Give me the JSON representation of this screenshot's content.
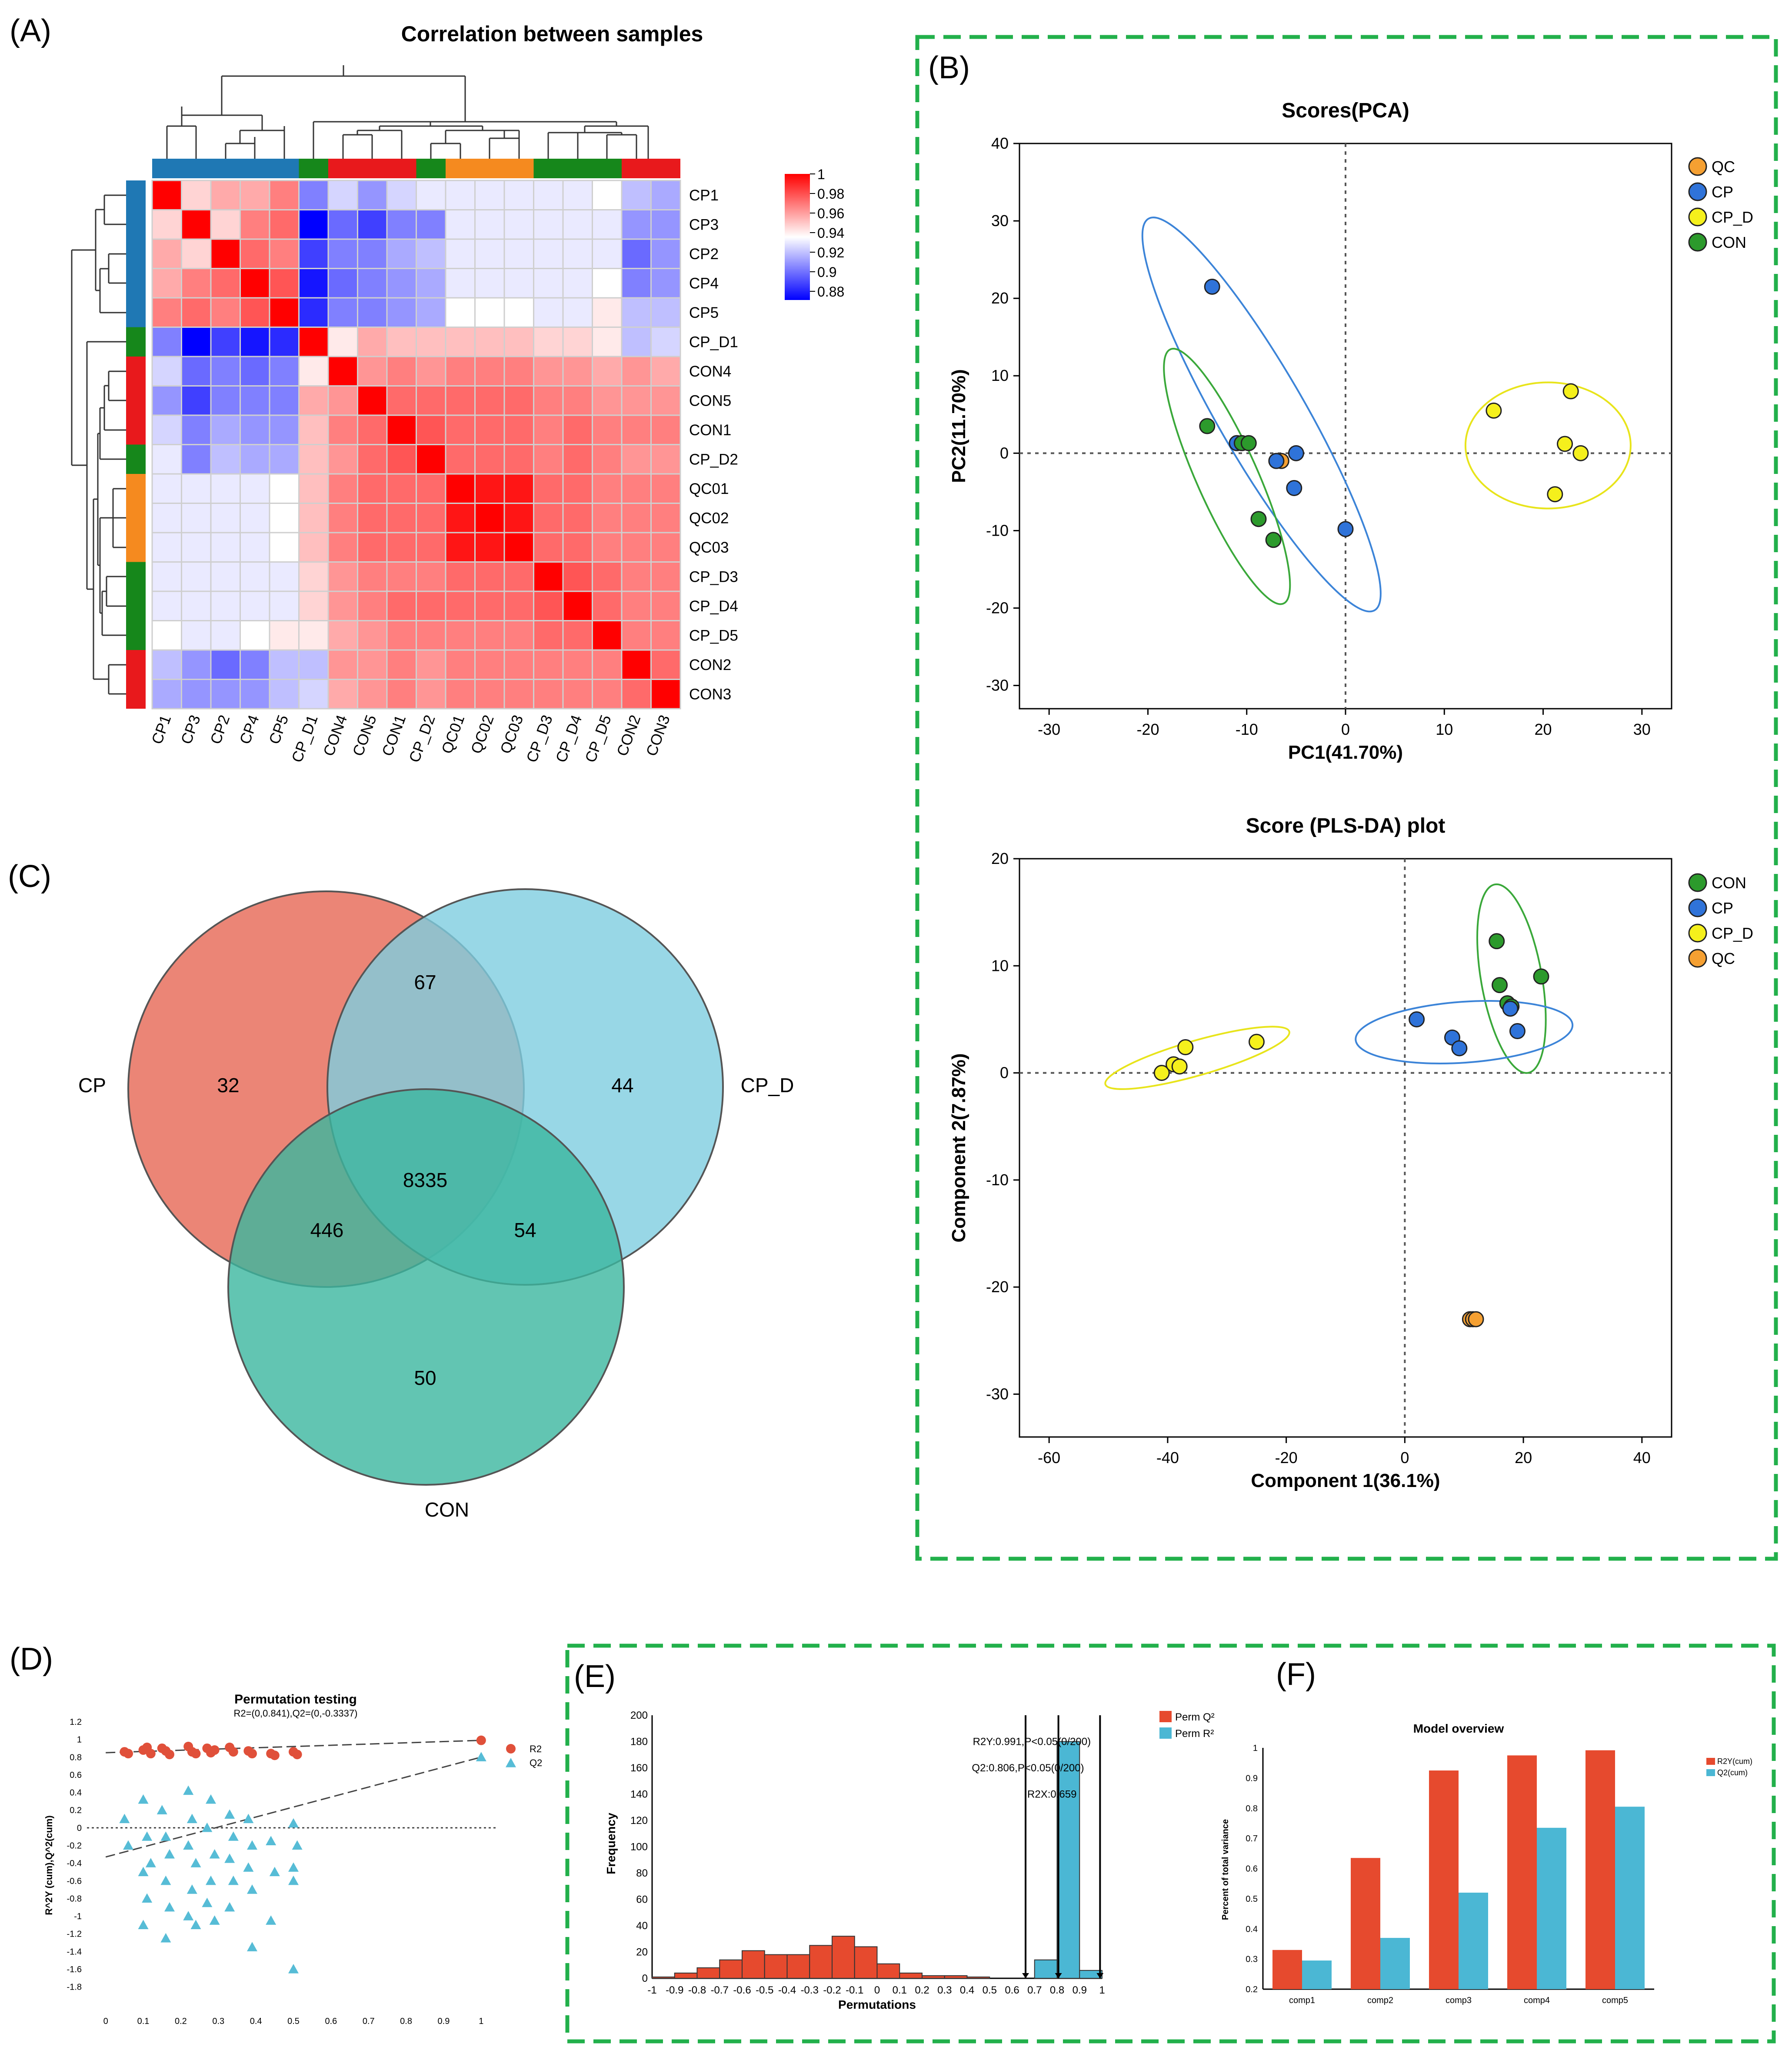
{
  "panel_letters": {
    "A": "(A)",
    "B": "(B)",
    "C": "(C)",
    "D": "(D)",
    "E": "(E)",
    "F": "(F)"
  },
  "colors": {
    "CP": "#1f78b4",
    "CON": "#e8191c",
    "CP_D": "#16871b",
    "QC": "#f58a1f",
    "pt_CP": "#2f73d9",
    "pt_CON": "#2c9a2c",
    "pt_CP_D": "#f5f01c",
    "pt_QC": "#f5a032",
    "venn_CP": "#e8705e",
    "venn_CP_D": "#7ecde0",
    "venn_CON": "#3bb79f",
    "bar_red": "#e64a2e",
    "bar_blue": "#4bb7d4",
    "frame": "#22b04b"
  },
  "chart_data": [
    {
      "type": "heatmap",
      "title": "Correlation between samples",
      "samples": [
        "CP1",
        "CP3",
        "CP2",
        "CP4",
        "CP5",
        "CP_D1",
        "CON4",
        "CON5",
        "CON1",
        "CP_D2",
        "QC01",
        "QC02",
        "QC03",
        "CP_D3",
        "CP_D4",
        "CP_D5",
        "CON2",
        "CON3"
      ],
      "groups": [
        "CP",
        "CP",
        "CP",
        "CP",
        "CP",
        "CP_D",
        "CON",
        "CON",
        "CON",
        "CP_D",
        "QC",
        "QC",
        "QC",
        "CP_D",
        "CP_D",
        "CP_D",
        "CON",
        "CON"
      ],
      "legend_ticks": [
        "1",
        "0.98",
        "0.96",
        "0.94",
        "0.92",
        "0.9",
        "0.88"
      ],
      "matrix": [
        [
          1,
          0.95,
          0.96,
          0.96,
          0.97,
          0.91,
          0.93,
          0.915,
          0.93,
          0.935,
          0.935,
          0.935,
          0.935,
          0.935,
          0.935,
          0.94,
          0.925,
          0.92
        ],
        [
          0.95,
          1,
          0.95,
          0.97,
          0.975,
          0.88,
          0.905,
          0.895,
          0.91,
          0.91,
          0.935,
          0.935,
          0.935,
          0.935,
          0.935,
          0.935,
          0.915,
          0.915
        ],
        [
          0.96,
          0.95,
          1,
          0.975,
          0.97,
          0.895,
          0.91,
          0.91,
          0.92,
          0.925,
          0.935,
          0.935,
          0.935,
          0.935,
          0.935,
          0.935,
          0.905,
          0.915
        ],
        [
          0.96,
          0.97,
          0.975,
          1,
          0.98,
          0.885,
          0.905,
          0.91,
          0.915,
          0.92,
          0.935,
          0.935,
          0.935,
          0.935,
          0.935,
          0.94,
          0.91,
          0.915
        ],
        [
          0.97,
          0.975,
          0.97,
          0.98,
          1,
          0.89,
          0.91,
          0.91,
          0.915,
          0.92,
          0.94,
          0.94,
          0.94,
          0.935,
          0.935,
          0.945,
          0.925,
          0.925
        ],
        [
          0.91,
          0.88,
          0.895,
          0.885,
          0.89,
          1,
          0.945,
          0.96,
          0.955,
          0.955,
          0.955,
          0.955,
          0.955,
          0.95,
          0.95,
          0.945,
          0.925,
          0.93
        ],
        [
          0.93,
          0.905,
          0.91,
          0.905,
          0.91,
          0.945,
          1,
          0.965,
          0.97,
          0.965,
          0.97,
          0.97,
          0.97,
          0.965,
          0.965,
          0.96,
          0.965,
          0.96
        ],
        [
          0.915,
          0.895,
          0.91,
          0.91,
          0.91,
          0.96,
          0.965,
          1,
          0.975,
          0.975,
          0.975,
          0.975,
          0.975,
          0.97,
          0.97,
          0.965,
          0.965,
          0.965
        ],
        [
          0.93,
          0.91,
          0.92,
          0.915,
          0.915,
          0.955,
          0.97,
          0.975,
          1,
          0.98,
          0.975,
          0.975,
          0.975,
          0.97,
          0.975,
          0.97,
          0.97,
          0.97
        ],
        [
          0.935,
          0.91,
          0.925,
          0.92,
          0.92,
          0.955,
          0.965,
          0.975,
          0.98,
          1,
          0.975,
          0.975,
          0.975,
          0.97,
          0.975,
          0.97,
          0.965,
          0.965
        ],
        [
          0.935,
          0.935,
          0.935,
          0.935,
          0.94,
          0.955,
          0.97,
          0.975,
          0.975,
          0.975,
          1,
          0.995,
          0.995,
          0.975,
          0.975,
          0.97,
          0.97,
          0.97
        ],
        [
          0.935,
          0.935,
          0.935,
          0.935,
          0.94,
          0.955,
          0.97,
          0.975,
          0.975,
          0.975,
          0.995,
          1,
          0.995,
          0.975,
          0.975,
          0.97,
          0.97,
          0.97
        ],
        [
          0.935,
          0.935,
          0.935,
          0.935,
          0.94,
          0.955,
          0.97,
          0.975,
          0.975,
          0.975,
          0.995,
          0.995,
          1,
          0.975,
          0.975,
          0.97,
          0.97,
          0.97
        ],
        [
          0.935,
          0.935,
          0.935,
          0.935,
          0.935,
          0.95,
          0.965,
          0.97,
          0.97,
          0.97,
          0.975,
          0.975,
          0.975,
          1,
          0.98,
          0.975,
          0.97,
          0.97
        ],
        [
          0.935,
          0.935,
          0.935,
          0.935,
          0.935,
          0.95,
          0.965,
          0.97,
          0.975,
          0.975,
          0.975,
          0.975,
          0.975,
          0.98,
          1,
          0.975,
          0.97,
          0.97
        ],
        [
          0.94,
          0.935,
          0.935,
          0.94,
          0.945,
          0.945,
          0.96,
          0.965,
          0.97,
          0.97,
          0.97,
          0.97,
          0.97,
          0.975,
          0.975,
          1,
          0.97,
          0.97
        ],
        [
          0.925,
          0.915,
          0.905,
          0.91,
          0.925,
          0.925,
          0.965,
          0.965,
          0.97,
          0.965,
          0.97,
          0.97,
          0.97,
          0.97,
          0.97,
          0.97,
          1,
          0.975
        ],
        [
          0.92,
          0.915,
          0.915,
          0.915,
          0.925,
          0.93,
          0.96,
          0.965,
          0.97,
          0.965,
          0.97,
          0.97,
          0.97,
          0.97,
          0.97,
          0.97,
          0.975,
          1
        ]
      ]
    },
    {
      "type": "scatter",
      "title": "Scores(PCA)",
      "xlabel": "PC1(41.70%)",
      "ylabel": "PC2(11.70%)",
      "xlim": [
        -33,
        33
      ],
      "ylim": [
        -33,
        40
      ],
      "xticks": [
        "-30",
        "-20",
        "-10",
        "0",
        "10",
        "20",
        "30"
      ],
      "yticks": [
        "40",
        "30",
        "20",
        "10",
        "0",
        "-10",
        "-20",
        "-30"
      ],
      "legend": [
        "QC",
        "CP",
        "CP_D",
        "CON"
      ],
      "series": [
        {
          "name": "QC",
          "points": [
            [
              -7,
              -1
            ],
            [
              -6.5,
              -1
            ]
          ]
        },
        {
          "name": "CP",
          "points": [
            [
              -13.5,
              21.5
            ],
            [
              -11,
              1.3
            ],
            [
              -5,
              0
            ],
            [
              -5.2,
              -4.5
            ],
            [
              0,
              -9.8
            ],
            [
              -7,
              -1
            ]
          ]
        },
        {
          "name": "CP_D",
          "points": [
            [
              15,
              5.5
            ],
            [
              22.8,
              8
            ],
            [
              22.2,
              1.2
            ],
            [
              23.8,
              0
            ],
            [
              21.2,
              -5.3
            ]
          ]
        },
        {
          "name": "CON",
          "points": [
            [
              -14,
              3.5
            ],
            [
              -10.5,
              1.3
            ],
            [
              -9.8,
              1.3
            ],
            [
              -8.8,
              -8.5
            ],
            [
              -7.3,
              -11.2
            ]
          ]
        }
      ]
    },
    {
      "type": "scatter",
      "title": "Score (PLS-DA) plot",
      "xlabel": "Component 1(36.1%)",
      "ylabel": "Component 2(7.87%)",
      "xlim": [
        -65,
        45
      ],
      "ylim": [
        -34,
        20
      ],
      "xticks": [
        "-60",
        "-40",
        "-20",
        "0",
        "20",
        "40"
      ],
      "yticks": [
        "20",
        "10",
        "0",
        "-10",
        "-20",
        "-30"
      ],
      "legend": [
        "CON",
        "CP",
        "CP_D",
        "QC"
      ],
      "series": [
        {
          "name": "CON",
          "points": [
            [
              15.5,
              12.3
            ],
            [
              16,
              8.2
            ],
            [
              23,
              9
            ],
            [
              17.3,
              6.5
            ],
            [
              18,
              6.2
            ]
          ]
        },
        {
          "name": "CP",
          "points": [
            [
              2,
              5
            ],
            [
              8,
              3.3
            ],
            [
              9.2,
              2.3
            ],
            [
              17.8,
              6
            ],
            [
              19,
              3.9
            ]
          ]
        },
        {
          "name": "CP_D",
          "points": [
            [
              -41,
              0
            ],
            [
              -39,
              0.8
            ],
            [
              -38,
              0.6
            ],
            [
              -37,
              2.4
            ],
            [
              -25,
              2.9
            ]
          ]
        },
        {
          "name": "QC",
          "points": [
            [
              11,
              -23
            ],
            [
              11.5,
              -23
            ],
            [
              12,
              -23
            ]
          ]
        }
      ]
    },
    {
      "type": "venn",
      "sets": [
        "CP",
        "CP_D",
        "CON"
      ],
      "regions": {
        "CP_only": "32",
        "CP_D_only": "44",
        "CON_only": "50",
        "CP_CP_D": "67",
        "CP_CON": "446",
        "CP_D_CON": "54",
        "all": "8335"
      }
    },
    {
      "type": "scatter",
      "title": "Permutation testing",
      "subtitle": "R2=(0,0.841),Q2=(0,-0.3337)",
      "ylabel": "R^2Y (cum),Q^2(cum)",
      "xlim": [
        -0.05,
        1.05
      ],
      "ylim": [
        -1.9,
        1.2
      ],
      "xticks": [
        "0",
        "0.1",
        "0.2",
        "0.3",
        "0.4",
        "0.5",
        "0.6",
        "0.7",
        "0.8",
        "0.9",
        "1"
      ],
      "yticks": [
        "1.2",
        "1",
        "0.8",
        "0.6",
        "0.4",
        "0.2",
        "0",
        "-0.2",
        "-0.4",
        "-0.6",
        "-0.8",
        "-1",
        "-1.2",
        "-1.4",
        "-1.6",
        "-1.8"
      ],
      "legend": [
        "R2",
        "Q2"
      ],
      "r2_points": [
        [
          0.05,
          0.86
        ],
        [
          0.06,
          0.84
        ],
        [
          0.1,
          0.88
        ],
        [
          0.11,
          0.91
        ],
        [
          0.12,
          0.84
        ],
        [
          0.15,
          0.9
        ],
        [
          0.16,
          0.87
        ],
        [
          0.17,
          0.83
        ],
        [
          0.22,
          0.92
        ],
        [
          0.23,
          0.86
        ],
        [
          0.24,
          0.84
        ],
        [
          0.27,
          0.9
        ],
        [
          0.28,
          0.85
        ],
        [
          0.29,
          0.88
        ],
        [
          0.33,
          0.91
        ],
        [
          0.34,
          0.86
        ],
        [
          0.38,
          0.87
        ],
        [
          0.39,
          0.84
        ],
        [
          0.44,
          0.84
        ],
        [
          0.45,
          0.82
        ],
        [
          0.5,
          0.86
        ],
        [
          0.51,
          0.83
        ],
        [
          1,
          0.99
        ]
      ],
      "q2_points": [
        [
          0.05,
          0.1
        ],
        [
          0.06,
          -0.2
        ],
        [
          0.1,
          0.32
        ],
        [
          0.11,
          -0.1
        ],
        [
          0.1,
          -0.5
        ],
        [
          0.11,
          -0.8
        ],
        [
          0.1,
          -1.1
        ],
        [
          0.12,
          -0.4
        ],
        [
          0.15,
          0.2
        ],
        [
          0.16,
          -0.1
        ],
        [
          0.17,
          -0.3
        ],
        [
          0.16,
          -0.6
        ],
        [
          0.17,
          -0.9
        ],
        [
          0.16,
          -1.25
        ],
        [
          0.22,
          0.42
        ],
        [
          0.23,
          0.1
        ],
        [
          0.22,
          -0.2
        ],
        [
          0.24,
          -0.4
        ],
        [
          0.23,
          -0.7
        ],
        [
          0.22,
          -1.0
        ],
        [
          0.24,
          -1.1
        ],
        [
          0.28,
          0.32
        ],
        [
          0.27,
          0.0
        ],
        [
          0.29,
          -0.3
        ],
        [
          0.28,
          -0.6
        ],
        [
          0.27,
          -0.85
        ],
        [
          0.29,
          -1.05
        ],
        [
          0.33,
          0.15
        ],
        [
          0.34,
          -0.1
        ],
        [
          0.33,
          -0.35
        ],
        [
          0.34,
          -0.6
        ],
        [
          0.33,
          -0.9
        ],
        [
          0.38,
          0.1
        ],
        [
          0.39,
          -0.2
        ],
        [
          0.38,
          -0.45
        ],
        [
          0.39,
          -0.7
        ],
        [
          0.39,
          -1.35
        ],
        [
          0.44,
          -0.15
        ],
        [
          0.45,
          -0.5
        ],
        [
          0.44,
          -1.05
        ],
        [
          0.5,
          0.05
        ],
        [
          0.51,
          -0.2
        ],
        [
          0.5,
          -0.45
        ],
        [
          0.5,
          -0.6
        ],
        [
          0.5,
          -1.6
        ],
        [
          1,
          0.8
        ]
      ],
      "r2_line": [
        [
          0,
          0.85
        ],
        [
          1,
          0.99
        ]
      ],
      "q2_line": [
        [
          0,
          -0.33
        ],
        [
          1,
          0.8
        ]
      ]
    },
    {
      "type": "bar",
      "title": "",
      "xlabel": "Permutations",
      "ylabel": "Frequency",
      "xlim": [
        -1,
        1
      ],
      "ylim": [
        0,
        200
      ],
      "xticks": [
        "-1",
        "-0.9",
        "-0.8",
        "-0.7",
        "-0.6",
        "-0.5",
        "-0.4",
        "-0.3",
        "-0.2",
        "-0.1",
        "0",
        "0.1",
        "0.2",
        "0.3",
        "0.4",
        "0.5",
        "0.6",
        "0.7",
        "0.8",
        "0.9",
        "1"
      ],
      "yticks": [
        "200",
        "180",
        "160",
        "140",
        "120",
        "100",
        "80",
        "60",
        "40",
        "20",
        "0"
      ],
      "legend": [
        "Perm Q²",
        "Perm R²"
      ],
      "annotations": [
        "R2Y:0.991,P<0.05(0/200)",
        "Q2:0.806,P<0.05(0/200)",
        "R2X:0.659"
      ],
      "q2_bins": {
        "starts": [
          -1,
          -0.9,
          -0.8,
          -0.7,
          -0.6,
          -0.5,
          -0.4,
          -0.3,
          -0.2,
          -0.1,
          0,
          0.1,
          0.2,
          0.3,
          0.4
        ],
        "values": [
          1,
          4,
          8,
          14,
          21,
          18,
          18,
          25,
          32,
          24,
          11,
          4,
          2,
          2,
          1
        ]
      },
      "r2_bins": {
        "starts": [
          0.7,
          0.8,
          0.9
        ],
        "values": [
          14,
          180,
          6
        ]
      },
      "ref_lines": [
        0.66,
        0.806,
        0.991
      ]
    },
    {
      "type": "bar",
      "title": "Model overview",
      "ylabel": "Percent of total variance",
      "categories": [
        "comp1",
        "comp2",
        "comp3",
        "comp4",
        "comp5"
      ],
      "ylim": [
        0.2,
        1
      ],
      "yticks": [
        "1",
        "0.9",
        "0.8",
        "0.7",
        "0.6",
        "0.5",
        "0.4",
        "0.3",
        "0.2"
      ],
      "series": [
        {
          "name": "R2Y(cum)",
          "values": [
            0.33,
            0.635,
            0.925,
            0.975,
            0.992
          ]
        },
        {
          "name": "Q2(cum)",
          "values": [
            0.295,
            0.37,
            0.52,
            0.735,
            0.805
          ]
        }
      ]
    }
  ]
}
